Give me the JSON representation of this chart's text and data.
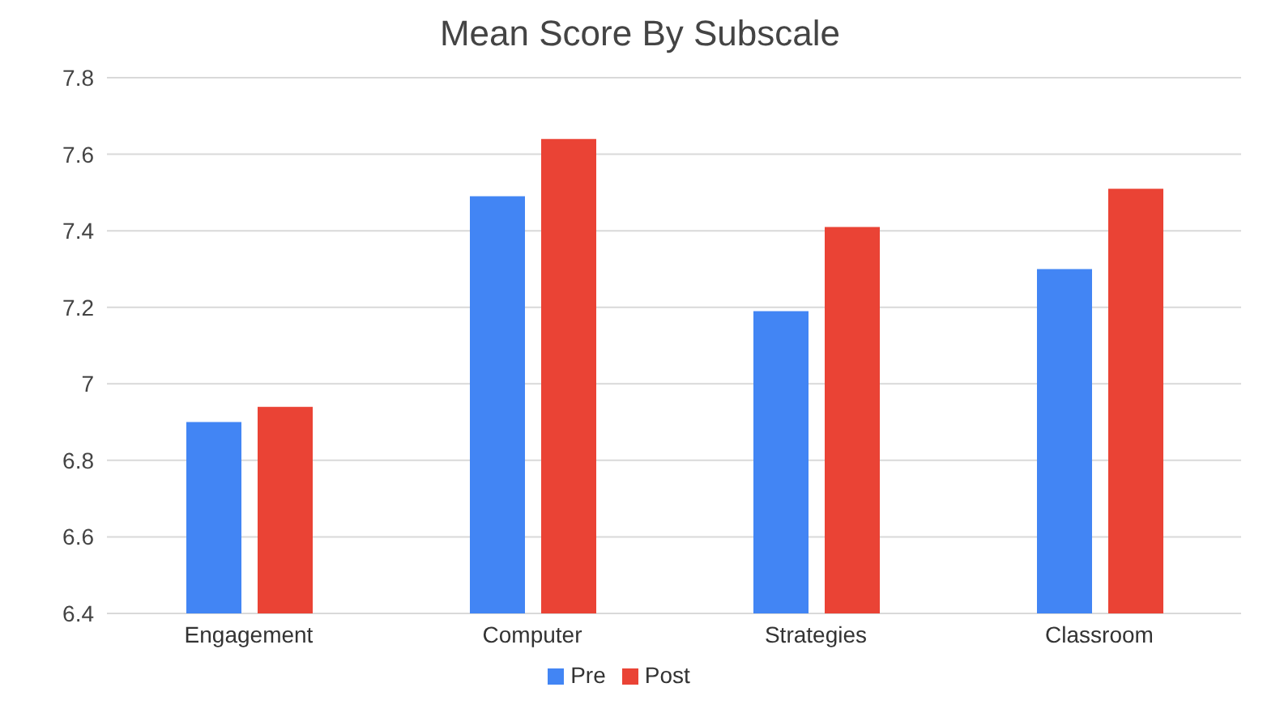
{
  "chart_data": {
    "type": "bar",
    "title": "Mean Score By Subscale",
    "categories": [
      "Engagement",
      "Computer",
      "Strategies",
      "Classroom"
    ],
    "series": [
      {
        "name": "Pre",
        "color": "#4285f4",
        "values": [
          6.9,
          7.49,
          7.19,
          7.3
        ]
      },
      {
        "name": "Post",
        "color": "#ea4335",
        "values": [
          6.94,
          7.64,
          7.41,
          7.51
        ]
      }
    ],
    "ylim": [
      6.4,
      7.8
    ],
    "yticks": [
      6.4,
      6.6,
      6.8,
      7,
      7.2,
      7.4,
      7.6,
      7.8
    ],
    "grid": "y",
    "legend": "bottom"
  }
}
